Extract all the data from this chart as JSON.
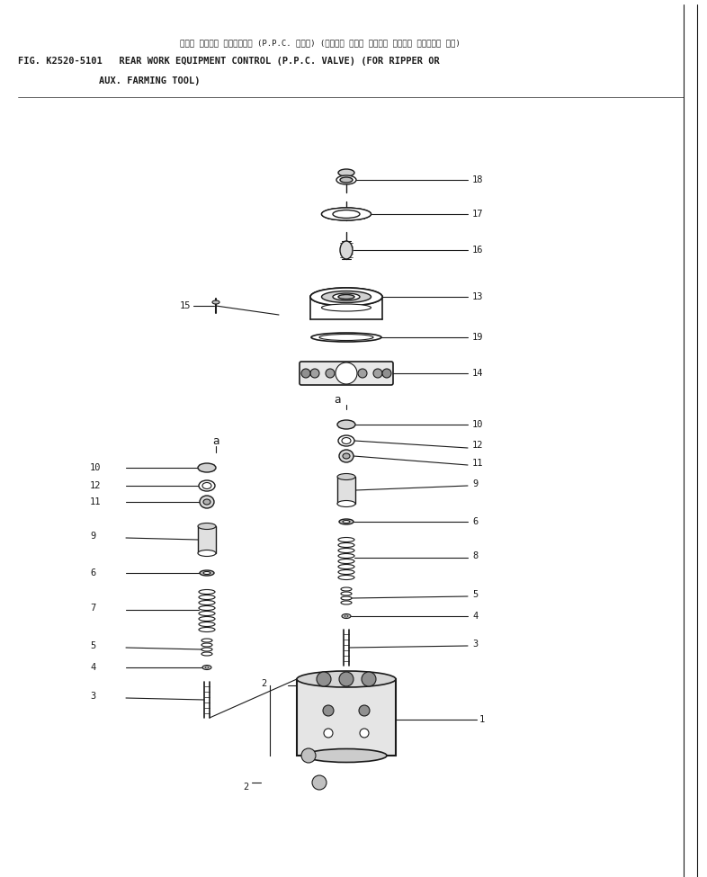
{
  "title_japanese": "リヤー サギヨキ コントロール (P.P.C. バルブ) (リッパー マタハ ノウコウ サギヨキ ソウチャク ヨウ)",
  "title_line1": "FIG. K2520-5101   REAR WORK EQUIPMENT CONTROL (P.P.C. VALVE) (FOR RIPPER OR",
  "title_line2": "AUX. FARMING TOOL)",
  "bg_color": "#ffffff",
  "line_color": "#1a1a1a",
  "label_color": "#1a1a1a",
  "fig_width": 7.86,
  "fig_height": 9.75
}
